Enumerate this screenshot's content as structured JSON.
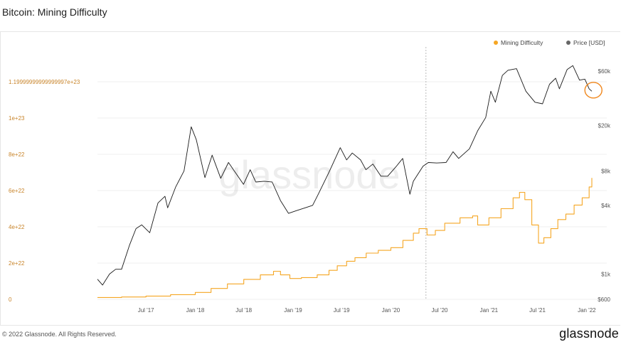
{
  "title": "Bitcoin: Mining Difficulty",
  "footer": {
    "copyright": "© 2022 Glassnode. All Rights Reserved.",
    "logo": "glassnode"
  },
  "watermark": "glassnode",
  "colors": {
    "difficulty": "#f5a623",
    "price": "#1a1a1a",
    "left_axis_text": "#c8842a",
    "highlight_circle": "#f0871c"
  },
  "chart_data": {
    "type": "line",
    "title": "Bitcoin: Mining Difficulty",
    "legend": {
      "placement": "top-right",
      "entries": [
        "Mining Difficulty",
        "Price [USD]"
      ]
    },
    "x_ticks": [
      "Jul '17",
      "Jan '18",
      "Jul '18",
      "Jan '19",
      "Jul '19",
      "Jan '20",
      "Jul '20",
      "Jan '21",
      "Jul '21",
      "Jan '22"
    ],
    "x_tick_dates": [
      "2017-07-01",
      "2018-01-01",
      "2018-07-01",
      "2019-01-01",
      "2019-07-01",
      "2020-01-01",
      "2020-07-01",
      "2021-01-01",
      "2021-07-01",
      "2022-01-01"
    ],
    "xlim": [
      "2017-01-01",
      "2022-01-20"
    ],
    "left_axis": {
      "ticks": [
        0,
        2e+22,
        4e+22,
        6e+22,
        8e+22,
        1e+23,
        1.2e+23
      ],
      "tick_labels": [
        "0",
        "2e+22",
        "4e+22",
        "6e+22",
        "8e+22",
        "1e+23",
        "1.19999999999999997e+23"
      ],
      "ylim": [
        0,
        1.2e+23
      ]
    },
    "right_axis": {
      "scale": "log",
      "ticks": [
        600,
        1000,
        4000,
        8000,
        20000,
        60000
      ],
      "tick_labels": [
        "$600",
        "$1k",
        "$4k",
        "$8k",
        "$20k",
        "$60k"
      ],
      "ylim": [
        600,
        60000
      ]
    },
    "grid": "horizontal",
    "series": [
      {
        "name": "Mining Difficulty",
        "axis": "left",
        "step": true,
        "x": [
          "2017-01-01",
          "2017-04-01",
          "2017-07-01",
          "2017-10-01",
          "2018-01-01",
          "2018-03-01",
          "2018-05-01",
          "2018-07-01",
          "2018-09-01",
          "2018-10-20",
          "2018-11-15",
          "2018-12-20",
          "2019-02-01",
          "2019-04-01",
          "2019-05-15",
          "2019-06-15",
          "2019-07-20",
          "2019-08-20",
          "2019-10-01",
          "2019-11-15",
          "2020-01-01",
          "2020-02-15",
          "2020-03-25",
          "2020-04-15",
          "2020-05-15",
          "2020-06-15",
          "2020-07-20",
          "2020-09-15",
          "2020-11-01",
          "2020-11-20",
          "2021-01-01",
          "2021-02-15",
          "2021-04-01",
          "2021-04-25",
          "2021-05-15",
          "2021-06-10",
          "2021-07-05",
          "2021-07-25",
          "2021-08-20",
          "2021-09-15",
          "2021-10-15",
          "2021-11-15",
          "2021-12-15",
          "2022-01-10",
          "2022-01-20"
        ],
        "y": [
          1e+21,
          1.3e+21,
          1.8e+21,
          2.6e+21,
          3.8e+21,
          6e+21,
          8.5e+21,
          1.1e+22,
          1.35e+22,
          1.55e+22,
          1.35e+22,
          1.15e+22,
          1.2e+22,
          1.35e+22,
          1.6e+22,
          1.85e+22,
          2.1e+22,
          2.3e+22,
          2.55e+22,
          2.7e+22,
          2.85e+22,
          3.25e+22,
          3.65e+22,
          3.9e+22,
          3.55e+22,
          3.8e+22,
          4.2e+22,
          4.5e+22,
          4.6e+22,
          4.1e+22,
          4.5e+22,
          5e+22,
          5.6e+22,
          5.9e+22,
          5.5e+22,
          4.1e+22,
          3.1e+22,
          3.4e+22,
          3.9e+22,
          4.4e+22,
          4.7e+22,
          5.2e+22,
          5.6e+22,
          6.2e+22,
          6.7e+22
        ]
      },
      {
        "name": "Price [USD]",
        "axis": "right",
        "x": [
          "2017-01-01",
          "2017-01-20",
          "2017-02-15",
          "2017-03-10",
          "2017-04-01",
          "2017-05-01",
          "2017-05-25",
          "2017-06-15",
          "2017-07-15",
          "2017-08-15",
          "2017-09-10",
          "2017-09-20",
          "2017-10-20",
          "2017-11-20",
          "2017-12-17",
          "2018-01-05",
          "2018-02-06",
          "2018-03-05",
          "2018-04-06",
          "2018-05-05",
          "2018-06-30",
          "2018-07-25",
          "2018-08-15",
          "2018-09-15",
          "2018-10-15",
          "2018-11-15",
          "2018-12-15",
          "2019-01-15",
          "2019-02-15",
          "2019-03-15",
          "2019-04-05",
          "2019-05-15",
          "2019-06-26",
          "2019-07-20",
          "2019-08-10",
          "2019-09-10",
          "2019-09-30",
          "2019-10-26",
          "2019-11-25",
          "2019-12-20",
          "2020-01-20",
          "2020-02-14",
          "2020-03-12",
          "2020-03-25",
          "2020-04-30",
          "2020-05-20",
          "2020-06-20",
          "2020-07-25",
          "2020-08-20",
          "2020-09-10",
          "2020-10-20",
          "2020-11-20",
          "2020-12-20",
          "2021-01-08",
          "2021-01-25",
          "2021-02-20",
          "2021-03-13",
          "2021-04-14",
          "2021-05-19",
          "2021-06-22",
          "2021-07-20",
          "2021-08-15",
          "2021-09-07",
          "2021-09-21",
          "2021-10-20",
          "2021-11-10",
          "2021-12-05",
          "2021-12-25",
          "2022-01-10",
          "2022-01-20"
        ],
        "y": [
          900,
          800,
          1000,
          1100,
          1100,
          1800,
          2500,
          2700,
          2300,
          4200,
          4800,
          3800,
          5800,
          8000,
          19500,
          15000,
          7000,
          11000,
          6900,
          9500,
          6100,
          8200,
          6400,
          6500,
          6400,
          4400,
          3400,
          3600,
          3800,
          4000,
          5000,
          7800,
          12800,
          10000,
          11500,
          10000,
          8200,
          9200,
          7200,
          7200,
          8700,
          10300,
          5000,
          6500,
          8800,
          9500,
          9400,
          9500,
          11800,
          10300,
          12500,
          18000,
          23500,
          40000,
          32000,
          55000,
          61000,
          63000,
          40000,
          32000,
          31000,
          46000,
          52000,
          42000,
          62000,
          67000,
          50000,
          51000,
          42000,
          40000
        ]
      }
    ],
    "annotations": [
      {
        "type": "vertical-dashed-line",
        "x": "2020-05-11"
      },
      {
        "type": "circle-highlight",
        "x": "2022-01-10",
        "series": "Price [USD]"
      }
    ]
  }
}
